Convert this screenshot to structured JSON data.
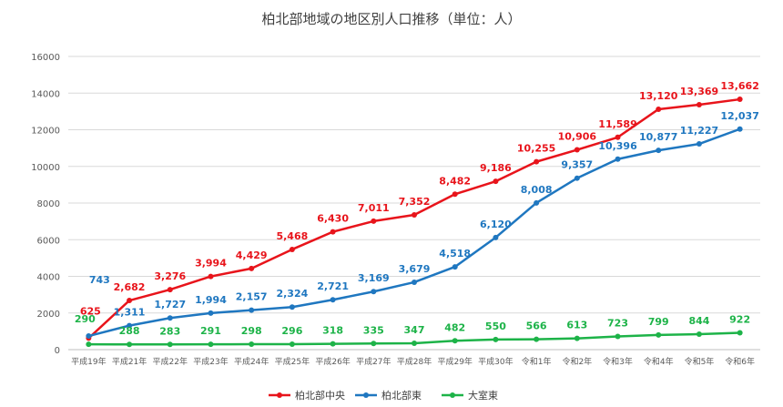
{
  "chart_data": {
    "type": "line",
    "title": "柏北部地域の地区別人口推移（単位：人）",
    "categories": [
      "平成19年",
      "平成21年",
      "平成22年",
      "平成23年",
      "平成24年",
      "平成25年",
      "平成26年",
      "平成27年",
      "平成28年",
      "平成29年",
      "平成30年",
      "令和1年",
      "令和2年",
      "令和3年",
      "令和4年",
      "令和5年",
      "令和6年"
    ],
    "ylim": [
      0,
      16000
    ],
    "yticks": [
      0,
      2000,
      4000,
      6000,
      8000,
      10000,
      12000,
      14000,
      16000
    ],
    "grid": true,
    "legend_position": "bottom",
    "series": [
      {
        "name": "柏北部中央",
        "color": "#e8141b",
        "values": [
          625,
          2682,
          3276,
          3994,
          4429,
          5468,
          6430,
          7011,
          7352,
          8482,
          9186,
          10255,
          10906,
          11589,
          13120,
          13369,
          13662
        ],
        "labels": [
          "625",
          "2,682",
          "3,276",
          "3,994",
          "4,429",
          "5,468",
          "6,430",
          "7,011",
          "7,352",
          "8,482",
          "9,186",
          "10,255",
          "10,906",
          "11,589",
          "13,120",
          "13,369",
          "13,662"
        ]
      },
      {
        "name": "柏北部東",
        "color": "#1f77c0",
        "values": [
          743,
          1311,
          1727,
          1994,
          2157,
          2324,
          2721,
          3169,
          3679,
          4518,
          6120,
          8008,
          9357,
          10396,
          10877,
          11227,
          12037
        ],
        "labels": [
          "743",
          "1,311",
          "1,727",
          "1,994",
          "2,157",
          "2,324",
          "2,721",
          "3,169",
          "3,679",
          "4,518",
          "6,120",
          "8,008",
          "9,357",
          "10,396",
          "10,877",
          "11,227",
          "12,037"
        ]
      },
      {
        "name": "大室東",
        "color": "#1db348",
        "values": [
          290,
          288,
          283,
          291,
          298,
          296,
          318,
          335,
          347,
          482,
          550,
          566,
          613,
          723,
          799,
          844,
          922
        ],
        "labels": [
          "290",
          "288",
          "283",
          "291",
          "298",
          "296",
          "318",
          "335",
          "347",
          "482",
          "550",
          "566",
          "613",
          "723",
          "799",
          "844",
          "922"
        ]
      }
    ]
  }
}
